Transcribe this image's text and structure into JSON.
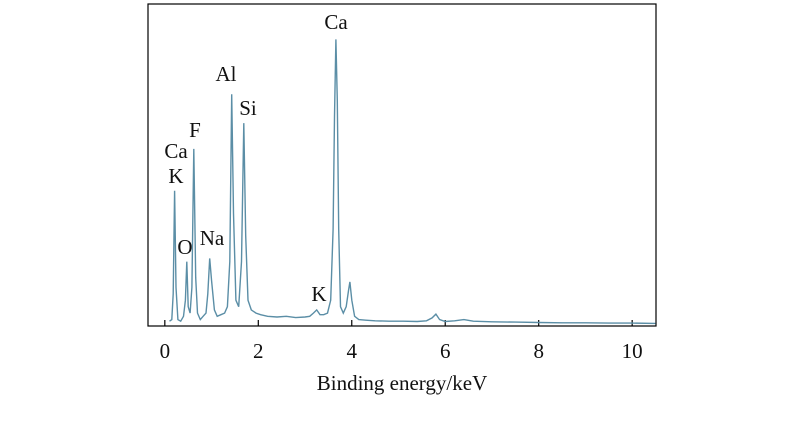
{
  "chart_data": {
    "type": "line",
    "x_label": "Binding energy/keV",
    "xlim": [
      -0.36,
      10.51
    ],
    "xticks": [
      0,
      2,
      4,
      6,
      8,
      10
    ],
    "ylim": [
      0,
      100
    ],
    "series": [
      {
        "color": "#5b8ea6",
        "x": [
          0.1,
          0.15,
          0.18,
          0.21,
          0.24,
          0.28,
          0.34,
          0.4,
          0.44,
          0.47,
          0.5,
          0.54,
          0.58,
          0.62,
          0.66,
          0.7,
          0.76,
          0.82,
          0.88,
          0.92,
          0.96,
          1.0,
          1.06,
          1.12,
          1.2,
          1.28,
          1.34,
          1.39,
          1.43,
          1.47,
          1.52,
          1.58,
          1.64,
          1.69,
          1.73,
          1.78,
          1.85,
          1.95,
          2.05,
          2.2,
          2.4,
          2.6,
          2.8,
          3.0,
          3.1,
          3.18,
          3.25,
          3.32,
          3.4,
          3.48,
          3.55,
          3.6,
          3.63,
          3.66,
          3.69,
          3.72,
          3.76,
          3.82,
          3.88,
          3.93,
          3.96,
          4.0,
          4.06,
          4.15,
          4.3,
          4.5,
          4.8,
          5.1,
          5.4,
          5.6,
          5.72,
          5.8,
          5.88,
          6.0,
          6.2,
          6.4,
          6.6,
          7.0,
          7.5,
          8.0,
          8.5,
          9.0,
          9.5,
          10.0,
          10.5
        ],
        "values": [
          1.5,
          2,
          10,
          42,
          12,
          2,
          1.5,
          3,
          8,
          20,
          6,
          4,
          12,
          55,
          15,
          4,
          2,
          3,
          4,
          10,
          21,
          14,
          5,
          3,
          3.5,
          4,
          6,
          20,
          72,
          35,
          8,
          6,
          20,
          63,
          28,
          8,
          5,
          4,
          3.5,
          3,
          2.8,
          3,
          2.6,
          2.8,
          3,
          4,
          5,
          3.5,
          3.5,
          4,
          8,
          30,
          65,
          89,
          70,
          30,
          6,
          4,
          6,
          11,
          13.7,
          8,
          3,
          2,
          1.8,
          1.6,
          1.5,
          1.5,
          1.4,
          1.6,
          2.5,
          3.7,
          2,
          1.4,
          1.6,
          2,
          1.5,
          1.3,
          1.2,
          1.1,
          1,
          1,
          0.9,
          0.9,
          0.8
        ]
      }
    ],
    "annotations": [
      "Ca",
      "Al",
      "Si",
      "F",
      "Ca",
      "K",
      "O",
      "Na",
      "K"
    ]
  }
}
